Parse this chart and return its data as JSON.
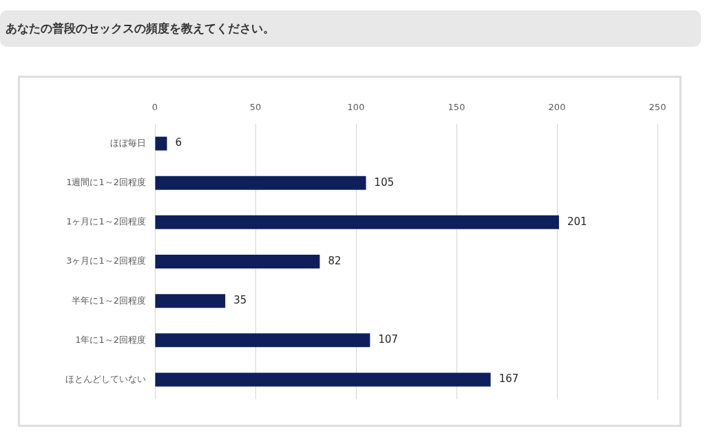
{
  "chart_data": {
    "type": "bar",
    "title": "あなたの普段のセックスの頻度を教えてください。",
    "orientation": "horizontal",
    "categories": [
      "ほぼ毎日",
      "1週間に1～2回程度",
      "1ヶ月に1～2回程度",
      "3ヶ月に1～2回程度",
      "半年に1～2回程度",
      "1年に1～2回程度",
      "ほとんどしていない"
    ],
    "values": [
      6,
      105,
      201,
      82,
      35,
      107,
      167
    ],
    "color": "#0e1f5c",
    "xlim": [
      0,
      250
    ],
    "xticks": [
      0,
      50,
      100,
      150,
      200,
      250
    ],
    "grid": "x",
    "legend": false,
    "data_labels": true
  }
}
